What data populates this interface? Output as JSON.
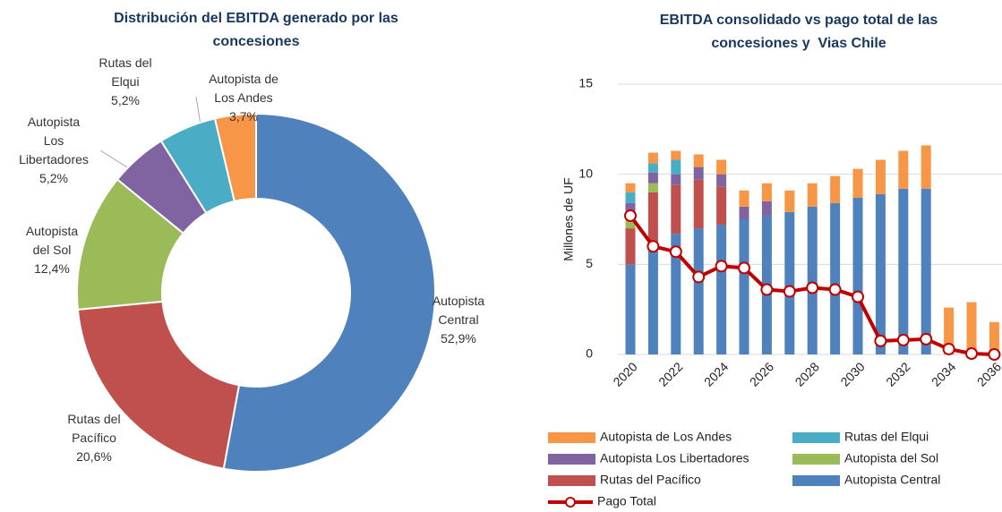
{
  "chart_data": [
    {
      "type": "pie",
      "donut": true,
      "title": "Distribución del EBITDA generado por las concesiones",
      "categories": [
        "Autopista Central",
        "Rutas del Pacífico",
        "Autopista del Sol",
        "Autopista Los Libertadores",
        "Rutas del Elqui",
        "Autopista de Los Andes"
      ],
      "values": [
        52.9,
        20.6,
        12.4,
        5.2,
        5.2,
        3.7
      ],
      "value_labels": [
        "52,9%",
        "20,6%",
        "12,4%",
        "5,2%",
        "5,2%",
        "3,7%"
      ],
      "colors": [
        "#4f81bd",
        "#c0504d",
        "#9bbb59",
        "#8064a2",
        "#4bacc6",
        "#f79646"
      ]
    },
    {
      "type": "bar",
      "stacked": true,
      "title": "EBITDA consolidado vs pago total de las concesiones y  Vias Chile",
      "y_label": "Millones de UF",
      "categories": [
        "2020",
        null,
        "2022",
        null,
        "2024",
        null,
        "2026",
        null,
        "2028",
        null,
        "2030",
        null,
        "2032",
        null,
        "2034",
        null,
        "2036"
      ],
      "ylim": [
        0,
        15
      ],
      "yticks": [
        0,
        5,
        10,
        15
      ],
      "grid": true,
      "series": [
        {
          "name": "Autopista Central",
          "color": "#4f81bd",
          "values": [
            5.0,
            6.0,
            6.7,
            7.0,
            7.2,
            7.5,
            7.7,
            7.9,
            8.2,
            8.4,
            8.7,
            8.9,
            9.2,
            9.2,
            0,
            0,
            0
          ]
        },
        {
          "name": "Rutas del Pacífico",
          "color": "#c0504d",
          "values": [
            2.0,
            3.0,
            2.7,
            2.7,
            2.1,
            0,
            0,
            0,
            0,
            0,
            0,
            0,
            0,
            0,
            0,
            0,
            0
          ]
        },
        {
          "name": "Autopista del Sol",
          "color": "#9bbb59",
          "values": [
            0.7,
            0.5,
            0,
            0,
            0,
            0,
            0,
            0,
            0,
            0,
            0,
            0,
            0,
            0,
            0,
            0,
            0
          ]
        },
        {
          "name": "Autopista Los Libertadores",
          "color": "#8064a2",
          "values": [
            0.7,
            0.6,
            0.6,
            0.7,
            0.7,
            0.7,
            0.8,
            0,
            0,
            0,
            0,
            0,
            0,
            0,
            0,
            0,
            0
          ]
        },
        {
          "name": "Rutas del Elqui",
          "color": "#4bacc6",
          "values": [
            0.6,
            0.5,
            0.8,
            0,
            0,
            0,
            0,
            0,
            0,
            0,
            0,
            0,
            0,
            0,
            0,
            0,
            0
          ]
        },
        {
          "name": "Autopista de Los Andes",
          "color": "#f79646",
          "values": [
            0.5,
            0.6,
            0.5,
            0.7,
            0.8,
            0.9,
            1.0,
            1.2,
            1.3,
            1.5,
            1.6,
            1.9,
            2.1,
            2.4,
            2.6,
            2.9,
            1.8
          ]
        },
        {
          "name": "Pago Total",
          "color": "#c00000",
          "type": "line",
          "values": [
            7.7,
            6.0,
            5.7,
            4.3,
            4.9,
            4.8,
            3.6,
            3.5,
            3.7,
            3.6,
            3.2,
            0.75,
            0.8,
            0.85,
            0.3,
            0.05,
            0.0
          ]
        }
      ]
    }
  ]
}
